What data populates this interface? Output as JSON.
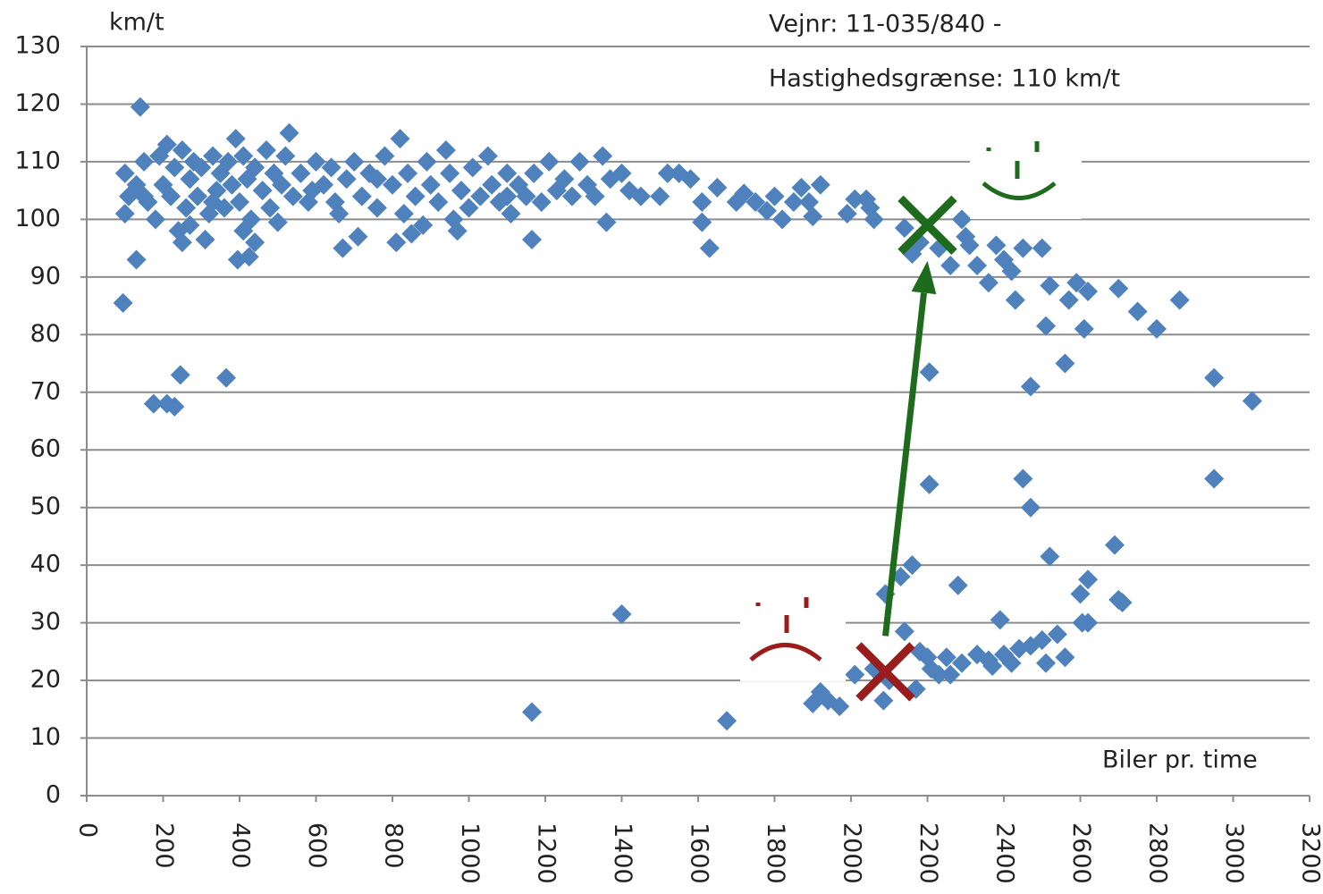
{
  "chart_data": {
    "type": "scatter",
    "y_label": "km/t",
    "annotations": [
      "Vejnr: 11-035/840 -",
      "Hastighedsgrænse: 110 km/t"
    ],
    "x_label": "Biler pr. time",
    "color": "#4f81bd",
    "grid": true,
    "xlim": [
      0,
      3200
    ],
    "ylim": [
      0,
      130
    ],
    "xticks": [
      0,
      200,
      400,
      600,
      800,
      1000,
      1200,
      1400,
      1600,
      1800,
      2000,
      2200,
      2400,
      2600,
      2800,
      3000,
      3200
    ],
    "yticks": [
      0,
      10,
      20,
      30,
      40,
      50,
      60,
      70,
      80,
      90,
      100,
      110,
      120,
      130
    ],
    "x": [
      100,
      100,
      110,
      130,
      150,
      160,
      180,
      190,
      200,
      210,
      220,
      230,
      240,
      250,
      260,
      270,
      280,
      290,
      300,
      310,
      320,
      330,
      340,
      350,
      360,
      370,
      380,
      390,
      400,
      410,
      420,
      430,
      440,
      460,
      470,
      480,
      490,
      500,
      510,
      520,
      530,
      540,
      560,
      580,
      600,
      620,
      640,
      650,
      660,
      680,
      700,
      710,
      720,
      740,
      760,
      780,
      800,
      820,
      830,
      840,
      860,
      880,
      890,
      900,
      920,
      940,
      950,
      960,
      980,
      1000,
      1010,
      1030,
      1050,
      1060,
      1080,
      1100,
      1110,
      1130,
      1150,
      1170,
      1190,
      1210,
      1230,
      1250,
      1270,
      1290,
      1310,
      1330,
      1350,
      1370,
      1400,
      1420,
      1450,
      150,
      250,
      270,
      330,
      410,
      590,
      760,
      850,
      970,
      1100,
      95,
      130,
      140,
      175,
      210,
      230,
      245,
      365,
      395,
      425,
      440,
      670,
      810,
      1165,
      1360,
      1630,
      1165,
      1400,
      1675,
      1900,
      1920,
      1940,
      1970,
      2010,
      2060,
      2085,
      2090,
      2100,
      2130,
      2140,
      2160,
      2170,
      2180,
      2200,
      2210,
      2230,
      2250,
      2260,
      2280,
      2290,
      2330,
      2360,
      2370,
      2390,
      2400,
      2420,
      2440,
      2450,
      2470,
      2470,
      2500,
      2510,
      2520,
      2540,
      2560,
      2600,
      2605,
      2620,
      2620,
      2690,
      2700,
      2710,
      2205,
      2205,
      2470,
      2560,
      2950,
      2950,
      3050,
      1500,
      1520,
      1550,
      1580,
      1610,
      1610,
      1650,
      1700,
      1720,
      1750,
      1780,
      1800,
      1820,
      1850,
      1870,
      1890,
      1900,
      1920,
      1990,
      2010,
      2040,
      2050,
      2060,
      2140,
      2160,
      2180,
      2230,
      2260,
      2290,
      2300,
      2310,
      2330,
      2360,
      2380,
      2400,
      2420,
      2430,
      2450,
      2500,
      2510,
      2520,
      2570,
      2590,
      2610,
      2620,
      2700,
      2750,
      2800,
      2860
    ],
    "values": [
      108,
      101,
      104,
      106,
      110,
      103,
      100,
      111,
      106,
      113,
      104,
      109,
      98,
      112,
      102,
      107,
      110,
      104,
      109,
      96.5,
      101,
      111,
      105,
      108,
      102,
      110,
      106,
      114,
      103,
      111,
      107,
      100,
      109,
      105,
      112,
      102,
      108,
      99.5,
      106,
      111,
      115,
      104,
      108,
      103,
      110,
      106,
      109,
      103,
      101,
      107,
      110,
      97,
      104,
      108,
      102,
      111,
      106,
      114,
      101,
      108,
      104,
      99,
      110,
      106,
      103,
      112,
      108,
      100,
      105,
      102,
      109,
      104,
      111,
      106,
      103,
      108,
      101,
      106,
      104,
      108,
      103,
      110,
      105,
      107,
      104,
      110,
      106,
      104,
      111,
      107,
      108,
      105,
      104,
      104,
      96,
      99,
      103,
      98,
      105,
      107,
      97.5,
      98,
      104,
      85.5,
      93,
      119.5,
      68,
      68,
      67.5,
      73,
      72.5,
      93,
      93.5,
      96,
      95,
      96,
      96.5,
      99.5,
      95,
      14.5,
      31.5,
      13,
      16,
      18,
      16.5,
      15.5,
      21,
      22,
      16.5,
      35,
      20,
      38,
      28.5,
      40,
      18.5,
      25,
      24,
      22,
      21,
      24,
      21,
      36.5,
      23,
      24.5,
      23.5,
      22.5,
      30.5,
      24.5,
      23,
      25.5,
      55,
      50,
      26,
      27,
      23,
      41.5,
      28,
      24,
      35,
      30,
      37.5,
      30,
      43.5,
      34,
      33.5,
      73.5,
      54,
      71,
      75,
      72.5,
      55,
      68.5,
      104,
      108,
      108,
      107,
      99.5,
      103,
      105.5,
      103,
      104.5,
      103,
      101.5,
      104,
      100,
      103,
      105.5,
      103,
      100.5,
      106,
      101,
      103.5,
      103.5,
      102,
      100,
      98.5,
      94,
      96,
      95,
      92,
      100,
      97,
      95.5,
      92,
      89,
      95.5,
      93,
      91,
      86,
      95,
      95,
      81.5,
      88.5,
      86,
      89,
      81,
      87.5,
      88,
      84,
      81,
      86
    ],
    "markers": [
      {
        "x": 2090,
        "y": 21.5,
        "color": "#9b1c1c"
      },
      {
        "x": 2200,
        "y": 99,
        "color": "#1e6b1e"
      }
    ]
  }
}
